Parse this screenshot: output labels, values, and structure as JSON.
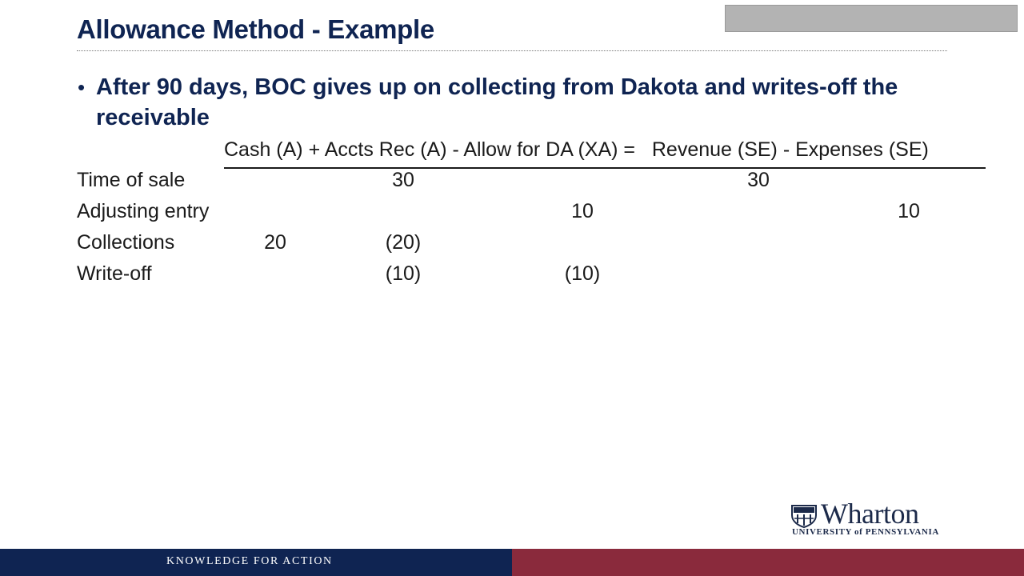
{
  "slide": {
    "title": "Allowance Method - Example",
    "bullet": "After 90 days, BOC gives up on collecting from Dakota and writes-off the receivable"
  },
  "equation": {
    "header": "Cash (A) + Accts Rec (A) - Allow for DA (XA) =   Revenue (SE) - Expenses (SE)"
  },
  "table": {
    "rows": [
      {
        "label": "Time of sale",
        "cash": "",
        "ar": "30",
        "allow": "",
        "revenue": "30",
        "expenses": ""
      },
      {
        "label": "Adjusting entry",
        "cash": "",
        "ar": "",
        "allow": "10",
        "revenue": "",
        "expenses": "10"
      },
      {
        "label": "Collections",
        "cash": "20",
        "ar": "(20)",
        "allow": "",
        "revenue": "",
        "expenses": ""
      },
      {
        "label": "Write-off",
        "cash": "",
        "ar": "(10)",
        "allow": "(10)",
        "revenue": "",
        "expenses": ""
      }
    ]
  },
  "logo": {
    "name": "Wharton",
    "subtitle": "UNIVERSITY of PENNSYLVANIA"
  },
  "footer": {
    "tagline": "KNOWLEDGE FOR ACTION",
    "left_color": "#0f2452",
    "right_color": "#8a2a3c"
  }
}
